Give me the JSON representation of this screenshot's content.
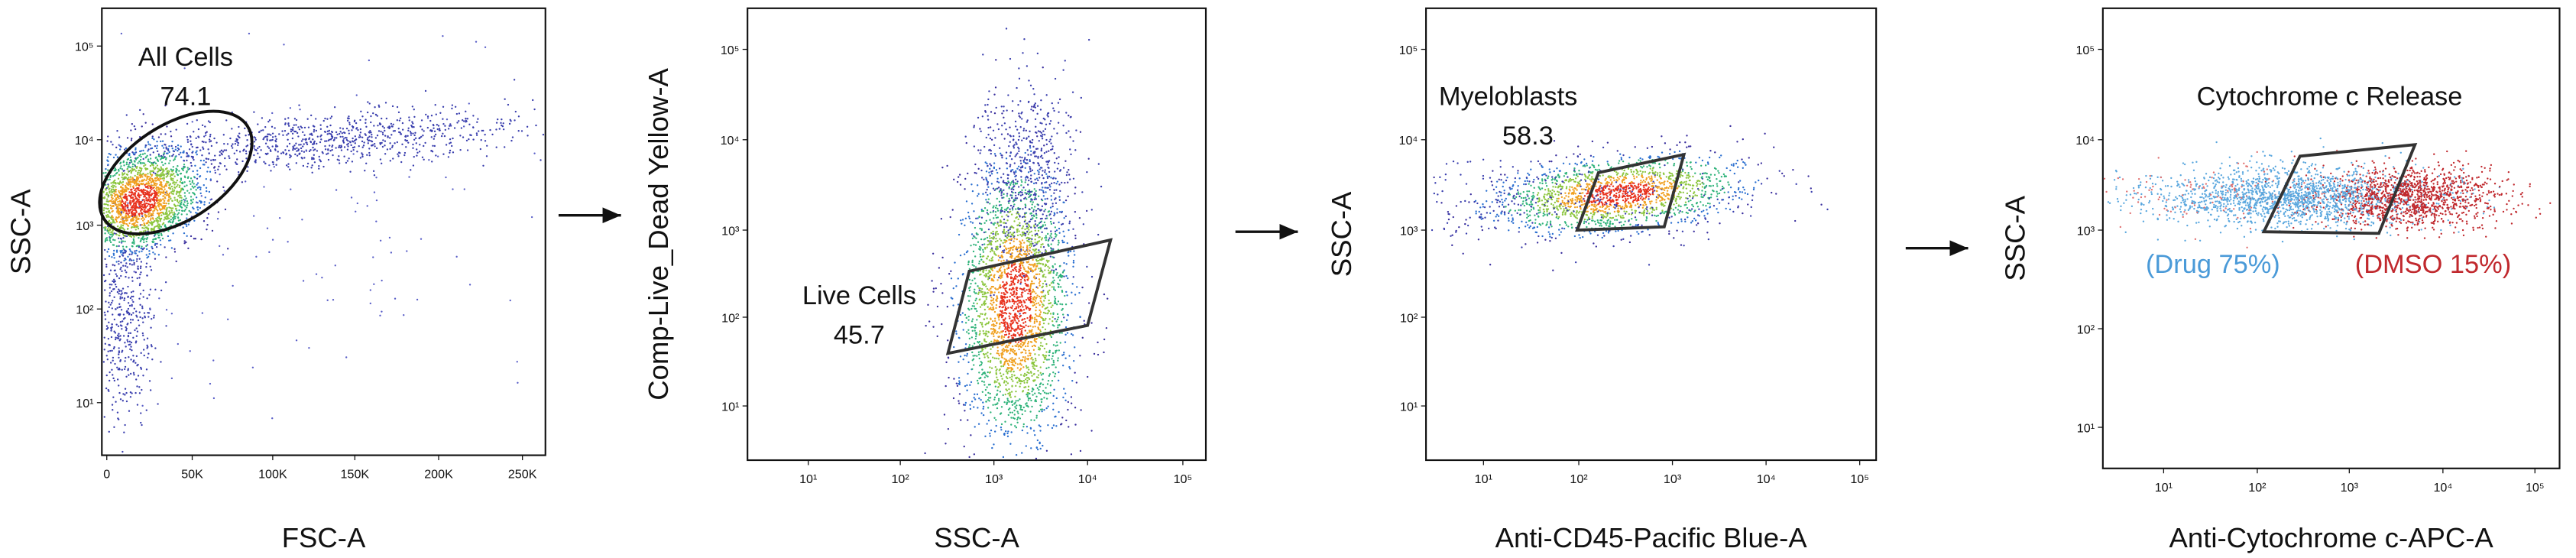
{
  "panels": [
    {
      "x_label": "FSC-A",
      "y_label": "SSC-A",
      "x_ticks": [
        "0",
        "50K",
        "100K",
        "150K",
        "200K",
        "250K"
      ],
      "y_ticks": [
        "10¹",
        "10²",
        "10³",
        "10⁴",
        "10⁵"
      ],
      "gate_label": "All Cells",
      "gate_value": "74.1"
    },
    {
      "x_label": "SSC-A",
      "y_label": "Comp-Live_Dead Yellow-A",
      "x_ticks": [
        "10¹",
        "10²",
        "10³",
        "10⁴",
        "10⁵"
      ],
      "y_ticks": [
        "10¹",
        "10²",
        "10³",
        "10⁴",
        "10⁵"
      ],
      "gate_label": "Live Cells",
      "gate_value": "45.7"
    },
    {
      "x_label": "Anti-CD45-Pacific Blue-A",
      "y_label": "SSC-A",
      "x_ticks": [
        "10¹",
        "10²",
        "10³",
        "10⁴",
        "10⁵"
      ],
      "y_ticks": [
        "10¹",
        "10²",
        "10³",
        "10⁴",
        "10⁵"
      ],
      "gate_label": "Myeloblasts",
      "gate_value": "58.3"
    },
    {
      "x_label": "Anti-Cytochrome c-APC-A",
      "y_label": "SSC-A",
      "x_ticks": [
        "10¹",
        "10²",
        "10³",
        "10⁴",
        "10⁵"
      ],
      "y_ticks": [
        "10¹",
        "10²",
        "10³",
        "10⁴",
        "10⁵"
      ],
      "gate_label": "Cytochrome c Release",
      "populations": [
        "(Drug 75%)",
        "(DMSO 15%)"
      ]
    }
  ]
}
